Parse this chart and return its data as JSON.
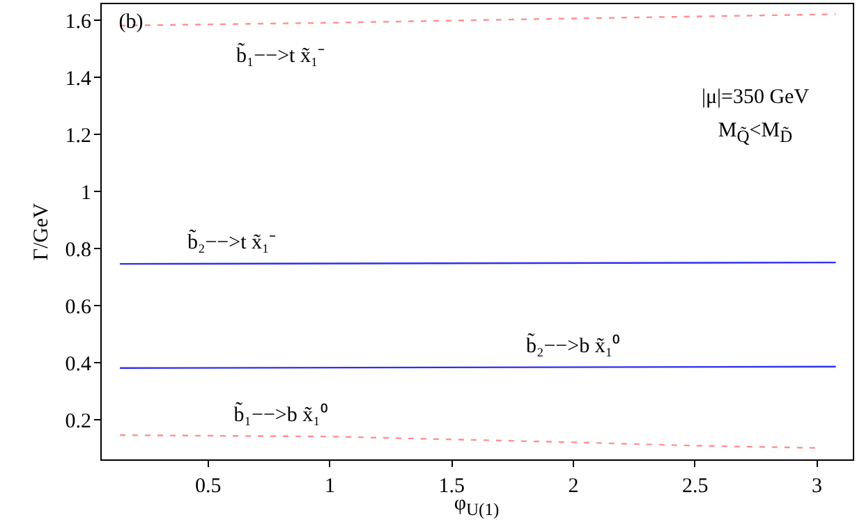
{
  "chart_data": {
    "type": "line",
    "xlabel": "φ$_{U(1)}$",
    "ylabel": "Γ/GeV",
    "xlim": [
      0.06,
      3.15
    ],
    "ylim": [
      0.06,
      1.66
    ],
    "xticks": [
      0.5,
      1,
      1.5,
      2,
      2.5,
      3
    ],
    "yticks": [
      0.2,
      0.4,
      0.6,
      0.8,
      1,
      1.2,
      1.4,
      1.6
    ],
    "grid": false,
    "marker": "none",
    "series": [
      {
        "color": "#ff9090",
        "line_style": "dashed",
        "x": [
          0.14,
          1.0,
          2.0,
          3.08
        ],
        "values": [
          1.58,
          1.59,
          1.605,
          1.62
        ]
      },
      {
        "color": "#3030f0",
        "line_style": "solid",
        "x": [
          0.14,
          3.08
        ],
        "values": [
          0.745,
          0.75
        ]
      },
      {
        "color": "#3030f0",
        "line_style": "solid",
        "x": [
          0.14,
          3.08
        ],
        "values": [
          0.38,
          0.385
        ]
      },
      {
        "color": "#ff9090",
        "line_style": "dashed",
        "x": [
          0.14,
          1.0,
          1.5,
          2.0,
          2.5,
          3.0
        ],
        "values": [
          0.145,
          0.14,
          0.13,
          0.12,
          0.108,
          0.1
        ]
      }
    ],
    "annotations": [
      {
        "text": "b̃₁−−>t x̃₁⁻",
        "x": 0.8,
        "y": 1.585
      },
      {
        "text": "b̃₂−−>t x̃₁⁻",
        "x": 0.6,
        "y": 0.745
      },
      {
        "text": "b̃₂−−>b x̃₁⁰",
        "x": 2.0,
        "y": 0.383
      },
      {
        "text": "b̃₁−−>b x̃₁⁰",
        "x": 0.8,
        "y": 0.14
      },
      "(b)",
      "|μ|=350 GeV",
      "M$_{Q̃}$<M$_{D̃}$"
    ]
  }
}
